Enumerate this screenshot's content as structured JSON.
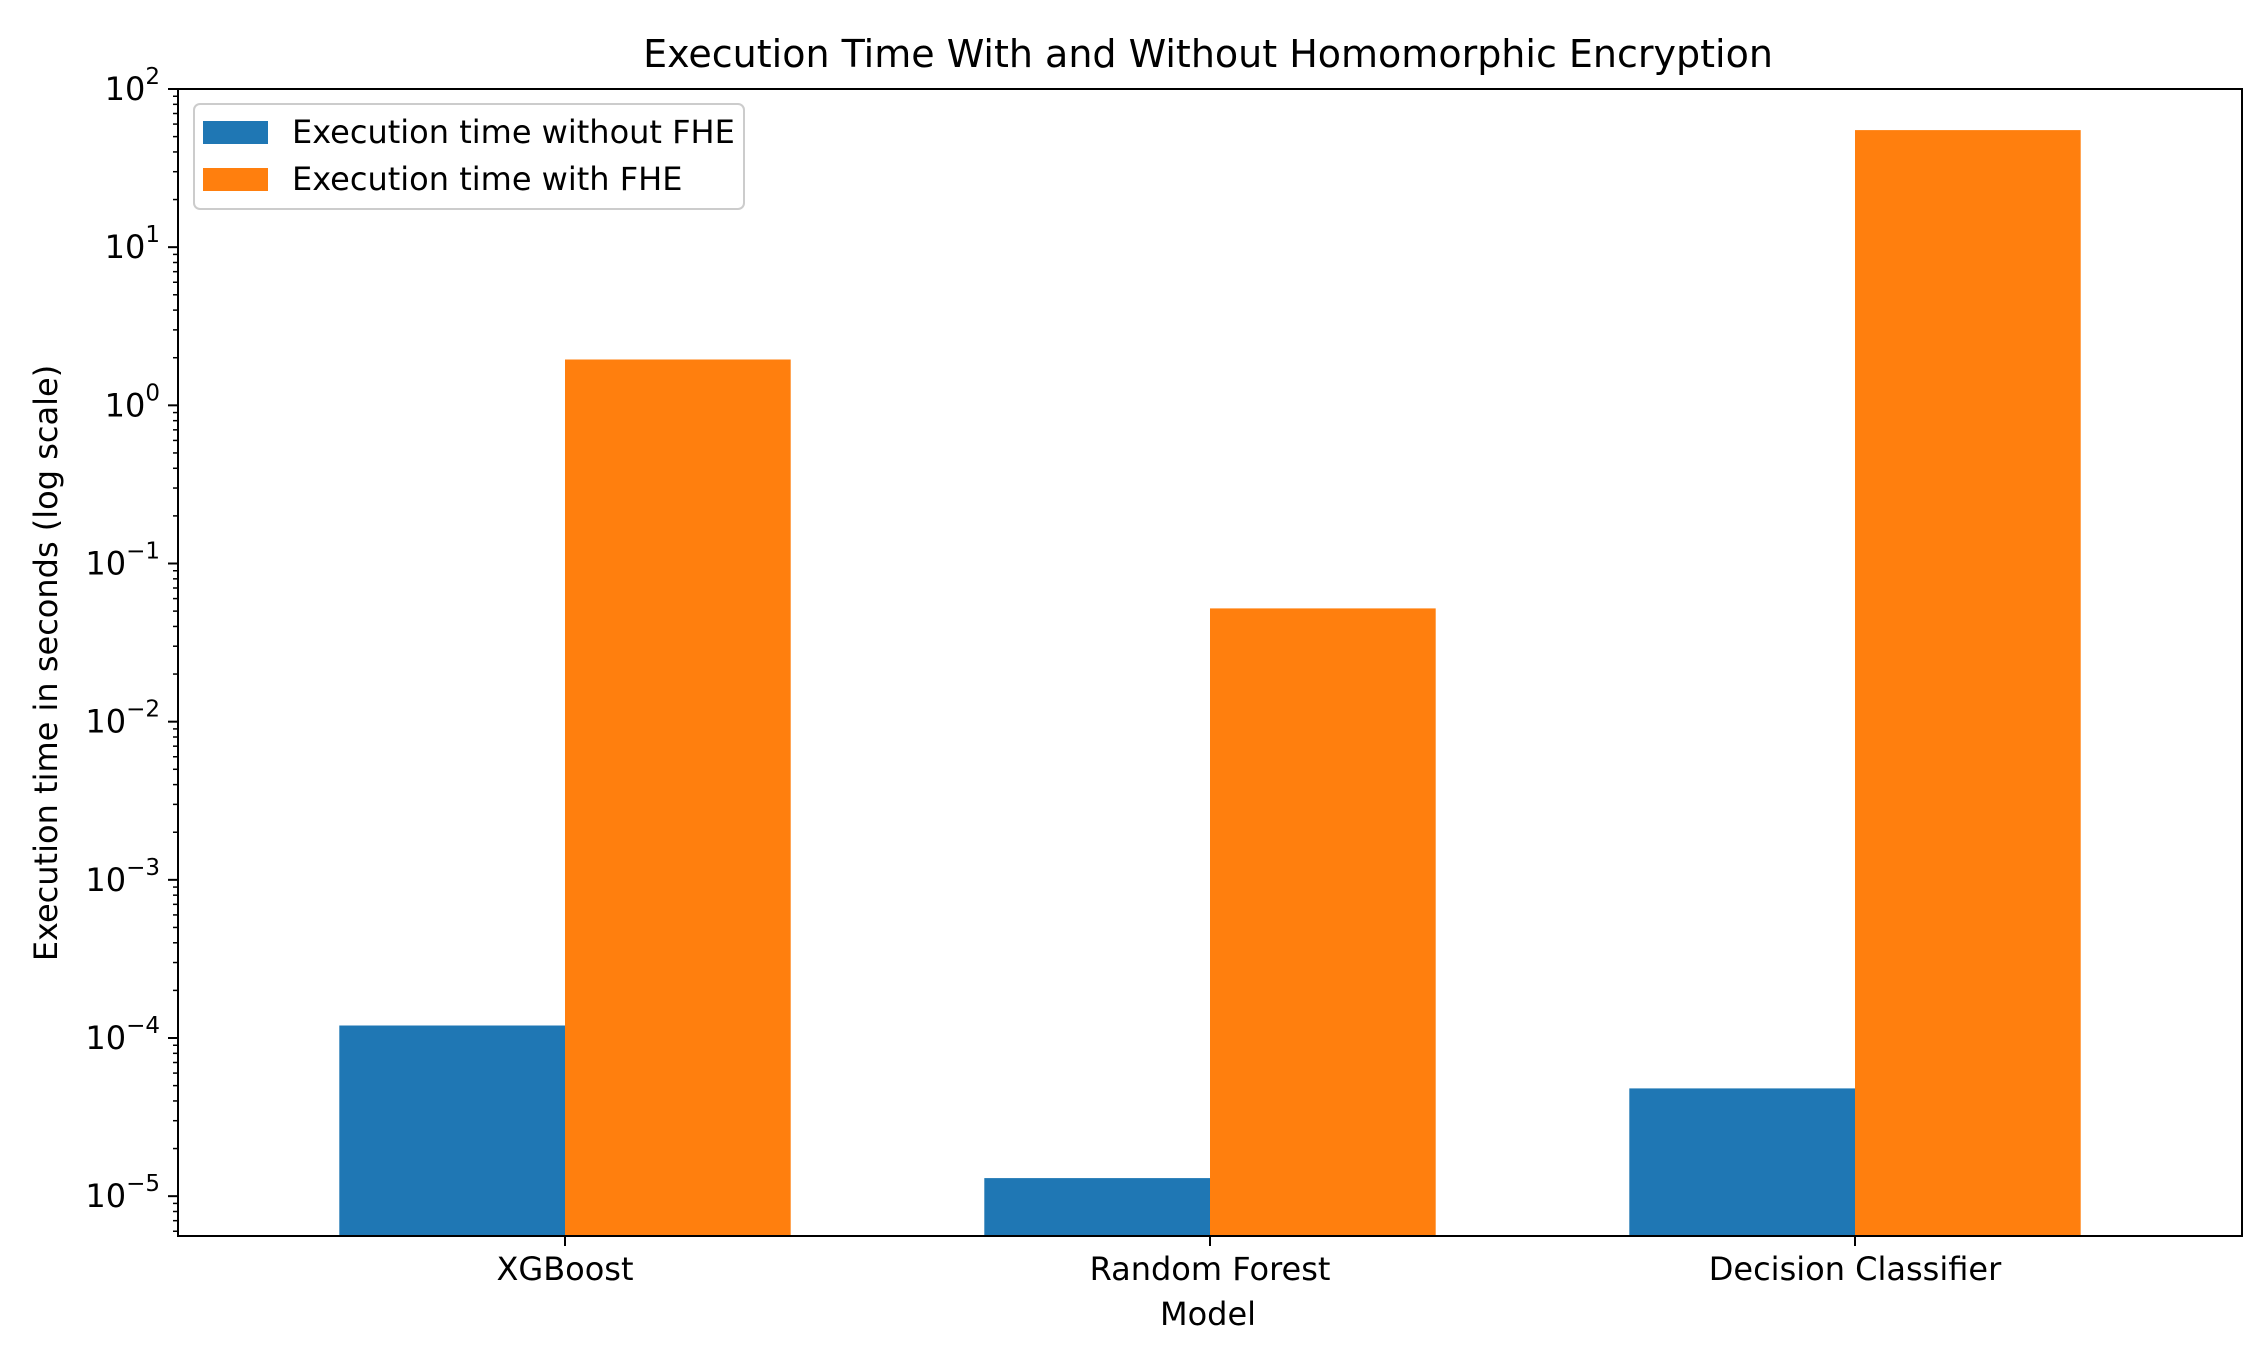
{
  "chart_data": {
    "type": "bar",
    "title": "Execution Time With and Without Homomorphic Encryption",
    "xlabel": "Model",
    "ylabel": "Execution time in seconds (log scale)",
    "yscale": "log",
    "ylim": [
      5.6e-06,
      100
    ],
    "ytick_exponents": [
      "2",
      "1",
      "0",
      "−1",
      "−2",
      "−3",
      "−4",
      "−5"
    ],
    "ytick_base": "10",
    "ytick_values": [
      100,
      10,
      1,
      0.1,
      0.01,
      0.001,
      0.0001,
      1e-05
    ],
    "categories": [
      "XGBoost",
      "Random Forest",
      "Decision Classifier"
    ],
    "series": [
      {
        "name": "Execution time without FHE",
        "color": "#1f77b4",
        "values": [
          0.00012,
          1.3e-05,
          4.8e-05
        ]
      },
      {
        "name": "Execution time with FHE",
        "color": "#ff7f0e",
        "values": [
          1.95,
          0.052,
          55
        ]
      }
    ],
    "legend_position": "top-left",
    "grid": false
  }
}
